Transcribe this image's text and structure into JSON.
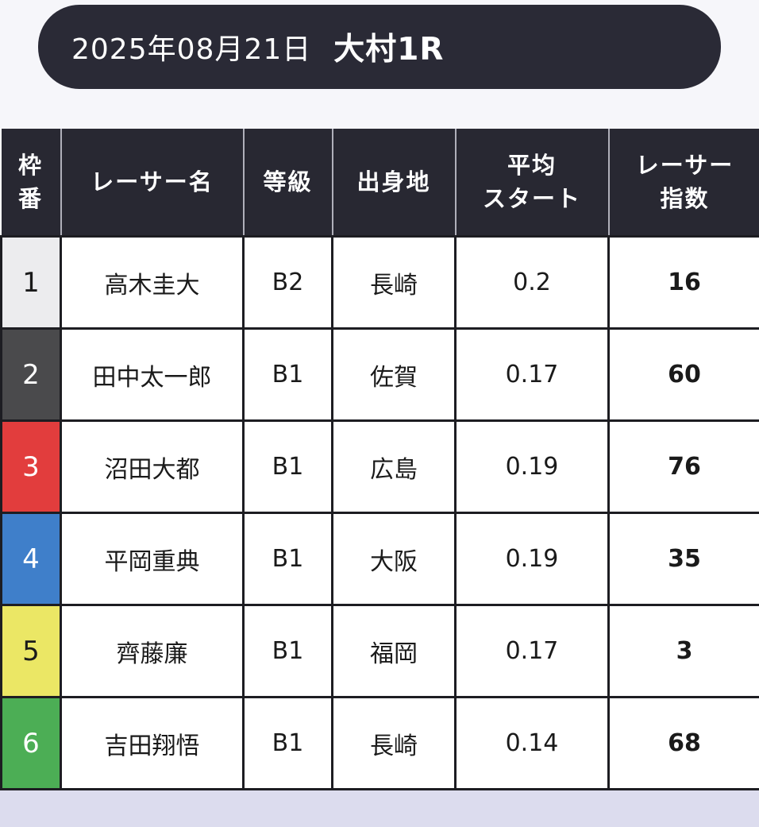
{
  "page": {
    "bg_top": "#f6f6fa",
    "bg_bottom": "#dcdcee"
  },
  "header": {
    "date": "2025年08月21日",
    "race": "大村1R",
    "bg": "#2a2a36",
    "text_color": "#ffffff"
  },
  "table": {
    "header_bg": "#282832",
    "border_color": "#1d1d22",
    "columns": [
      "枠\n番",
      "レーサー名",
      "等級",
      "出身地",
      "平均\nスタート",
      "レーサー\n指数"
    ],
    "rows": [
      {
        "lane": "1",
        "name": "高木圭大",
        "grade": "B2",
        "origin": "長崎",
        "avg_start": "0.2",
        "racer_index": "16",
        "lane_bg": "#ececee",
        "lane_fg": "#1a1a1a"
      },
      {
        "lane": "2",
        "name": "田中太一郎",
        "grade": "B1",
        "origin": "佐賀",
        "avg_start": "0.17",
        "racer_index": "60",
        "lane_bg": "#4a4a4c",
        "lane_fg": "#ffffff"
      },
      {
        "lane": "3",
        "name": "沼田大都",
        "grade": "B1",
        "origin": "広島",
        "avg_start": "0.19",
        "racer_index": "76",
        "lane_bg": "#e23d3d",
        "lane_fg": "#ffffff"
      },
      {
        "lane": "4",
        "name": "平岡重典",
        "grade": "B1",
        "origin": "大阪",
        "avg_start": "0.19",
        "racer_index": "35",
        "lane_bg": "#3f7fca",
        "lane_fg": "#ffffff"
      },
      {
        "lane": "5",
        "name": "齊藤廉",
        "grade": "B1",
        "origin": "福岡",
        "avg_start": "0.17",
        "racer_index": "3",
        "lane_bg": "#ebe765",
        "lane_fg": "#1a1a1a"
      },
      {
        "lane": "6",
        "name": "吉田翔悟",
        "grade": "B1",
        "origin": "長崎",
        "avg_start": "0.14",
        "racer_index": "68",
        "lane_bg": "#4cae55",
        "lane_fg": "#ffffff"
      }
    ]
  }
}
